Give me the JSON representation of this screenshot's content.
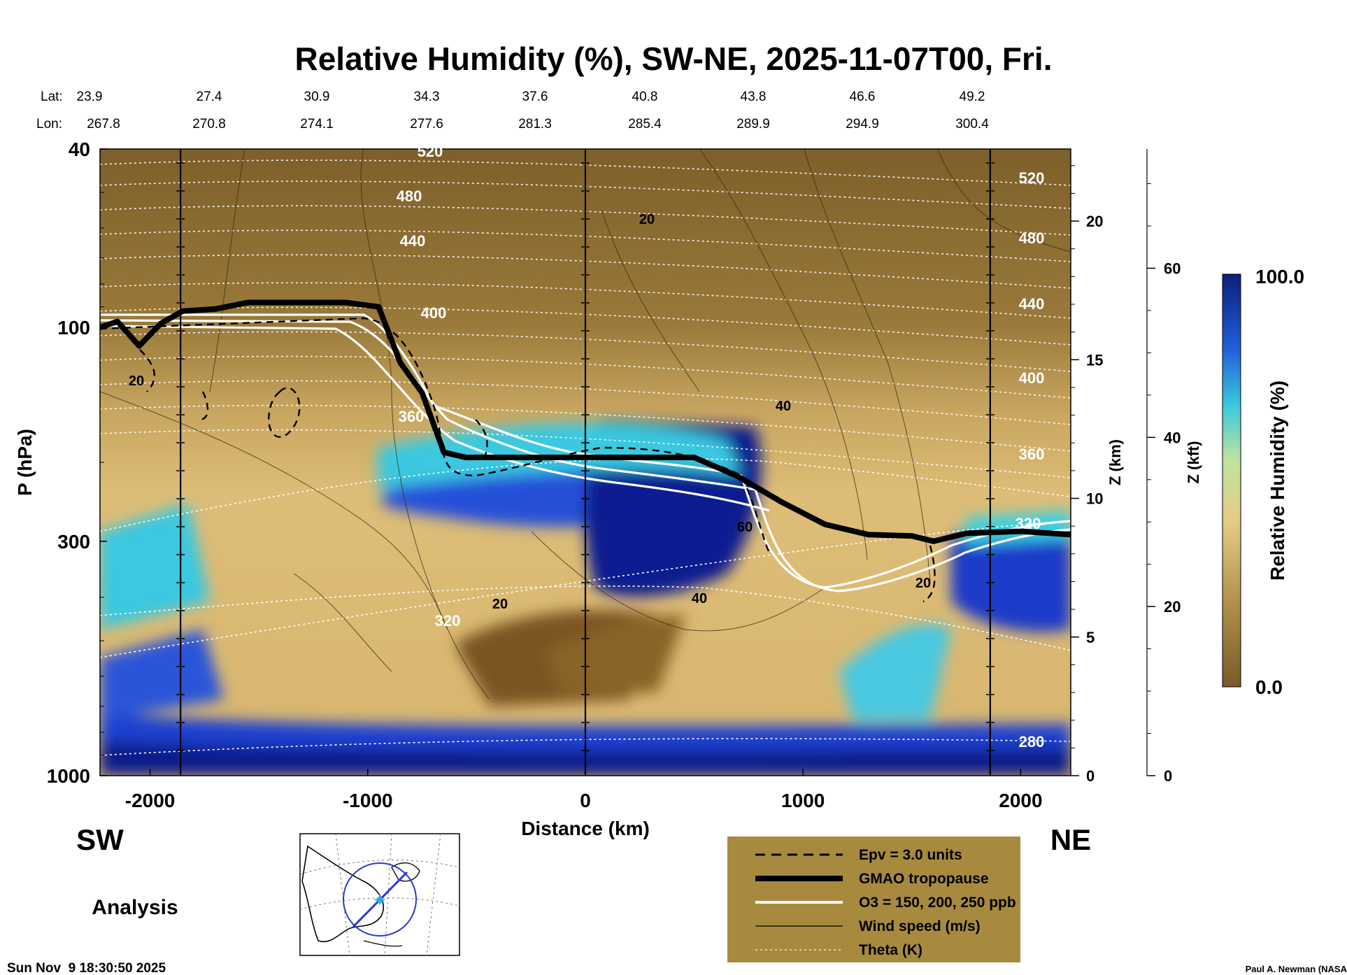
{
  "chart_data": {
    "type": "heatmap",
    "title": "Relative Humidity (%), SW-NE, 2025-11-07T00, Fri.",
    "xlabel": "Distance (km)",
    "ylabel": "P (hPa)",
    "ylabel_right": "Z (km)",
    "ylabel_right2": "Z (kft)",
    "xlim": [
      -2230,
      2230
    ],
    "ylim": [
      1000,
      40
    ],
    "y_scale": "log",
    "x_ticks": [
      "-2000",
      "-1000",
      "0",
      "1000",
      "2000"
    ],
    "y_ticks": [
      "40",
      "100",
      "300",
      "1000"
    ],
    "z_km_ticks": [
      "0",
      "5",
      "10",
      "15",
      "20"
    ],
    "z_kft_ticks": [
      "0",
      "20",
      "40",
      "60"
    ],
    "lat_label": "Lat:",
    "lon_label": "Lon:",
    "lat": [
      "23.9",
      "27.4",
      "30.9",
      "34.3",
      "37.6",
      "40.8",
      "43.8",
      "46.6",
      "49.2"
    ],
    "lon": [
      "267.8",
      "270.8",
      "274.1",
      "277.6",
      "281.3",
      "285.4",
      "289.9",
      "294.9",
      "300.4"
    ],
    "left_end_label": "SW",
    "right_end_label": "NE",
    "colorbar": {
      "label": "Relative Humidity (%)",
      "min": "0.0",
      "max": "100.0"
    },
    "theta_labels": [
      "520",
      "480",
      "440",
      "400",
      "360",
      "320",
      "280"
    ],
    "wind_labels": [
      "20",
      "40",
      "60"
    ],
    "tropopause_hPa": [
      [
        -2230,
        100
      ],
      [
        -2150,
        97
      ],
      [
        -2050,
        110
      ],
      [
        -1950,
        98
      ],
      [
        -1850,
        92
      ],
      [
        -1700,
        91
      ],
      [
        -1550,
        88
      ],
      [
        -1100,
        88
      ],
      [
        -950,
        90
      ],
      [
        -850,
        120
      ],
      [
        -750,
        140
      ],
      [
        -650,
        190
      ],
      [
        -550,
        195
      ],
      [
        -200,
        195
      ],
      [
        500,
        195
      ],
      [
        700,
        215
      ],
      [
        900,
        245
      ],
      [
        1100,
        275
      ],
      [
        1300,
        290
      ],
      [
        1500,
        292
      ],
      [
        1600,
        300
      ],
      [
        1750,
        288
      ],
      [
        2000,
        285
      ],
      [
        2230,
        290
      ]
    ],
    "legend": [
      {
        "style": "dashed",
        "label": "Epv = 3.0 units"
      },
      {
        "style": "thick",
        "label": "GMAO tropopause"
      },
      {
        "style": "white",
        "label": "O3 = 150, 200, 250 ppb"
      },
      {
        "style": "thin",
        "label": "Wind speed (m/s)"
      },
      {
        "style": "dotted",
        "label": "Theta (K)"
      }
    ],
    "run_label": "Analysis",
    "timestamp": "Sun Nov  9 18:30:50 2025",
    "credit": "Paul A. Newman (NASA"
  },
  "colors": {
    "brown": "#8a6a2e",
    "tan": "#e3c27a",
    "cyan": "#3ac8e0",
    "blue": "#2040d0",
    "navy": "#10208a",
    "legend_bg": "#a88a3e"
  }
}
